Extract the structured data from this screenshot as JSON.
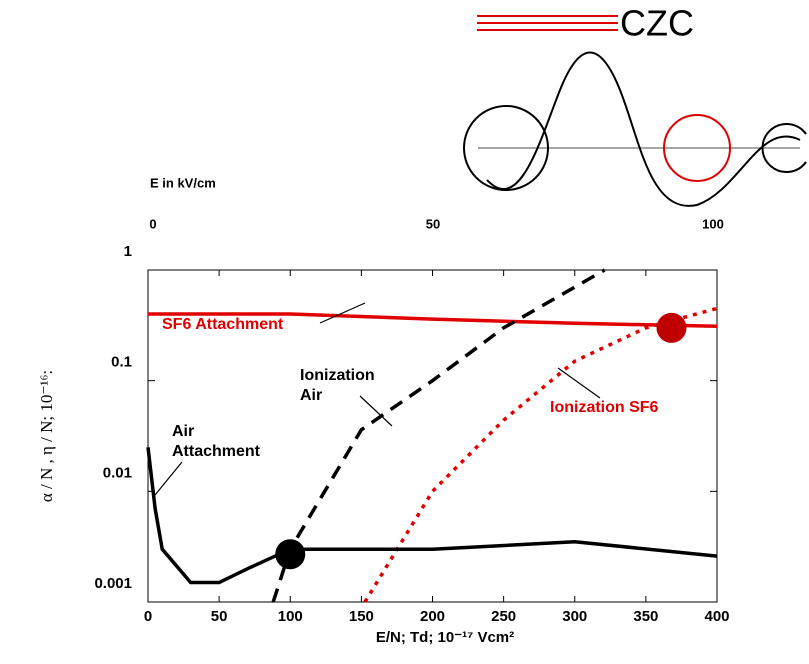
{
  "logo": {
    "text": "CZC"
  },
  "chart_data": {
    "type": "line",
    "log_y": true,
    "x_label": "E/N;  Td;  10⁻¹⁷  Vcm²",
    "y_label": "α / N ,  η / N;  10⁻¹⁶:",
    "x2_label": "E in kV/cm",
    "xlim": [
      0,
      400
    ],
    "xticks": [
      0,
      50,
      100,
      150,
      200,
      250,
      300,
      350,
      400
    ],
    "x2lim": [
      0,
      100
    ],
    "x2ticks": [
      0,
      50,
      100
    ],
    "ylim": [
      0.001,
      1
    ],
    "yticks": [
      0.001,
      0.01,
      0.1,
      1
    ],
    "series": [
      {
        "name": "SF6 Attachment",
        "color": "#e00000",
        "dash": "none",
        "x": [
          0,
          100,
          200,
          300,
          400
        ],
        "values": [
          0.4,
          0.4,
          0.36,
          0.33,
          0.31
        ]
      },
      {
        "name": "Ionization Air",
        "color": "#000000",
        "dash": "14 9",
        "x": [
          88,
          100,
          150,
          200,
          250,
          321
        ],
        "values": [
          0.001,
          0.003,
          0.036,
          0.1,
          0.3,
          1
        ]
      },
      {
        "name": "Ionization SF6",
        "color": "#e00000",
        "dash": "4 6",
        "x": [
          152.5,
          200,
          250,
          300,
          350,
          400
        ],
        "values": [
          0.001,
          0.01,
          0.044,
          0.15,
          0.3,
          0.45
        ]
      },
      {
        "name": "Air Attachment",
        "color": "#000000",
        "dash": "none",
        "x": [
          0,
          5,
          10,
          30,
          50,
          70,
          100,
          200,
          300,
          400
        ],
        "values": [
          0.025,
          0.007,
          0.003,
          0.0015,
          0.0015,
          0.002,
          0.003,
          0.003,
          0.0035,
          0.0026
        ]
      }
    ],
    "markers": [
      {
        "x": 100,
        "y": 0.0027,
        "color": "#000000"
      },
      {
        "x": 368,
        "y": 0.3,
        "color": "#c00000"
      }
    ],
    "annotations": [
      {
        "text": [
          "SF6 Attachment"
        ],
        "color": "#e00000"
      },
      {
        "text": [
          "Ionization",
          "Air"
        ],
        "color": "#000000"
      },
      {
        "text": [
          "Ionization SF6"
        ],
        "color": "#e00000"
      },
      {
        "text": [
          "Air",
          "Attachment"
        ],
        "color": "#000000"
      }
    ]
  }
}
